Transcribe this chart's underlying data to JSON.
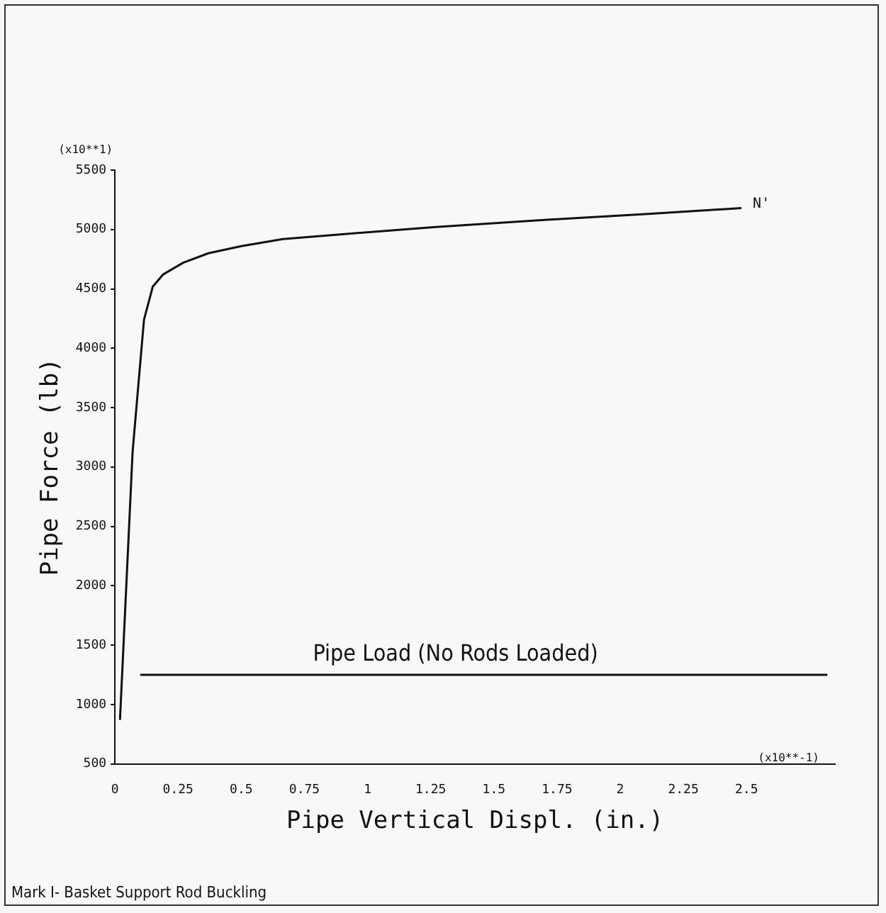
{
  "chart_data": {
    "type": "line",
    "xlabel": "Pipe Vertical Displ. (in.)",
    "ylabel": "Pipe Force (lb)",
    "xlim": [
      0,
      2.85
    ],
    "xticks": [
      0,
      0.25,
      0.5,
      0.75,
      1,
      1.25,
      1.5,
      1.75,
      2,
      2.25,
      2.5
    ],
    "ylim": [
      500,
      5500
    ],
    "yticks": [
      500,
      1000,
      1500,
      2000,
      2500,
      3000,
      3500,
      4000,
      4500,
      5000,
      5500
    ],
    "grid": false,
    "legend": false,
    "marker": "none",
    "line_style": "solid",
    "series": [
      {
        "color": "#111111",
        "x": [
          0.02,
          0.07,
          0.115,
          0.15,
          0.19,
          0.27,
          0.37,
          0.5,
          0.665,
          0.9,
          1.26,
          1.7,
          2.1,
          2.48
        ],
        "values": [
          870,
          3130,
          4240,
          4520,
          4620,
          4720,
          4800,
          4860,
          4920,
          4960,
          5020,
          5080,
          5130,
          5180
        ]
      },
      {
        "name": "Pipe Load (No Rods Loaded)",
        "color": "#111111",
        "x": [
          0.1,
          2.82
        ],
        "values": [
          1250,
          1250
        ]
      }
    ],
    "annotations": [
      "(x10**1)",
      "(x10**-1)",
      {
        "text": "N'",
        "x": 2.48,
        "y": 5180
      },
      "Mark I- Basket Support Rod Buckling"
    ]
  }
}
